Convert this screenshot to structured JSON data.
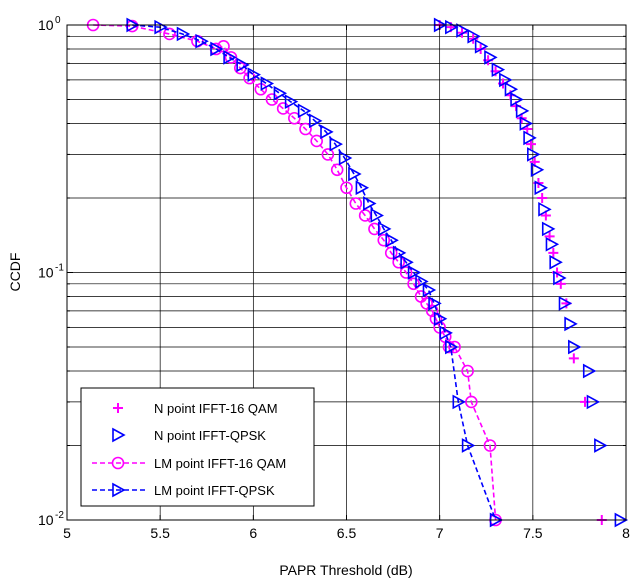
{
  "chart_data": {
    "type": "line",
    "title": "",
    "xlabel": "PAPR Threshold (dB)",
    "ylabel": "CCDF",
    "xlim": [
      5,
      8
    ],
    "ylim": [
      0.01,
      1
    ],
    "yscale": "log",
    "grid": true,
    "legend_position": "bottom-left",
    "x_ticks": [
      5,
      5.5,
      6,
      6.5,
      7,
      7.5,
      8
    ],
    "x_tick_labels": [
      "5",
      "5.5",
      "6",
      "6.5",
      "7",
      "7.5",
      "8"
    ],
    "y_ticks": [
      {
        "value": 0.01,
        "base": "10",
        "exp": "-2"
      },
      {
        "value": 0.1,
        "base": "10",
        "exp": "-1"
      },
      {
        "value": 1,
        "base": "10",
        "exp": "0"
      }
    ],
    "series": [
      {
        "name": "N point IFFT-16 QAM",
        "color": "#ff00ff",
        "marker": "plus",
        "line": "none",
        "x": [
          7.0,
          7.06,
          7.12,
          7.18,
          7.22,
          7.26,
          7.3,
          7.34,
          7.38,
          7.41,
          7.44,
          7.47,
          7.49,
          7.51,
          7.53,
          7.55,
          7.57,
          7.59,
          7.61,
          7.63,
          7.65,
          7.68,
          7.72,
          7.78,
          7.87
        ],
        "y": [
          1.0,
          0.98,
          0.93,
          0.88,
          0.8,
          0.72,
          0.65,
          0.58,
          0.52,
          0.47,
          0.42,
          0.38,
          0.33,
          0.28,
          0.23,
          0.2,
          0.17,
          0.14,
          0.12,
          0.1,
          0.09,
          0.075,
          0.045,
          0.03,
          0.01
        ]
      },
      {
        "name": "N point IFFT-QPSK",
        "color": "#0000ff",
        "marker": "triangle-right",
        "line": "none",
        "x": [
          7.0,
          7.06,
          7.12,
          7.18,
          7.22,
          7.27,
          7.31,
          7.35,
          7.38,
          7.41,
          7.44,
          7.46,
          7.48,
          7.5,
          7.52,
          7.54,
          7.56,
          7.58,
          7.6,
          7.62,
          7.64,
          7.67,
          7.7,
          7.72,
          7.8,
          7.82,
          7.86,
          7.97
        ],
        "y": [
          1.0,
          0.98,
          0.95,
          0.9,
          0.82,
          0.74,
          0.66,
          0.6,
          0.55,
          0.5,
          0.45,
          0.4,
          0.35,
          0.3,
          0.26,
          0.22,
          0.18,
          0.15,
          0.13,
          0.11,
          0.095,
          0.075,
          0.062,
          0.05,
          0.04,
          0.03,
          0.02,
          0.01
        ]
      },
      {
        "name": "LM point IFFT-16 QAM",
        "color": "#ff00ff",
        "marker": "circle",
        "line": "dashed",
        "x": [
          5.14,
          5.35,
          5.55,
          5.7,
          5.8,
          5.84,
          5.88,
          5.93,
          5.98,
          6.04,
          6.1,
          6.16,
          6.22,
          6.28,
          6.34,
          6.4,
          6.45,
          6.5,
          6.55,
          6.6,
          6.65,
          6.7,
          6.74,
          6.78,
          6.82,
          6.86,
          6.9,
          6.93,
          6.96,
          6.98,
          7.0,
          7.03,
          7.05,
          7.08,
          7.15,
          7.17,
          7.27,
          7.3
        ],
        "y": [
          1.0,
          0.99,
          0.92,
          0.86,
          0.8,
          0.82,
          0.74,
          0.67,
          0.61,
          0.55,
          0.5,
          0.46,
          0.42,
          0.38,
          0.34,
          0.3,
          0.26,
          0.22,
          0.19,
          0.17,
          0.15,
          0.135,
          0.12,
          0.11,
          0.1,
          0.09,
          0.08,
          0.075,
          0.07,
          0.065,
          0.06,
          0.055,
          0.05,
          0.05,
          0.04,
          0.03,
          0.02,
          0.01
        ]
      },
      {
        "name": "LM point IFFT-QPSK",
        "color": "#0000ff",
        "marker": "triangle-right",
        "line": "dashed",
        "x": [
          5.35,
          5.5,
          5.62,
          5.72,
          5.8,
          5.87,
          5.94,
          6.0,
          6.07,
          6.14,
          6.2,
          6.27,
          6.33,
          6.39,
          6.44,
          6.49,
          6.54,
          6.58,
          6.62,
          6.66,
          6.7,
          6.74,
          6.78,
          6.82,
          6.86,
          6.9,
          6.94,
          6.97,
          7.0,
          7.03,
          7.06,
          7.1,
          7.15,
          7.3
        ],
        "y": [
          1.0,
          0.98,
          0.92,
          0.86,
          0.8,
          0.74,
          0.69,
          0.63,
          0.58,
          0.53,
          0.49,
          0.45,
          0.41,
          0.37,
          0.33,
          0.29,
          0.25,
          0.22,
          0.19,
          0.17,
          0.15,
          0.135,
          0.12,
          0.11,
          0.1,
          0.092,
          0.085,
          0.075,
          0.065,
          0.057,
          0.05,
          0.03,
          0.02,
          0.01
        ]
      }
    ]
  }
}
